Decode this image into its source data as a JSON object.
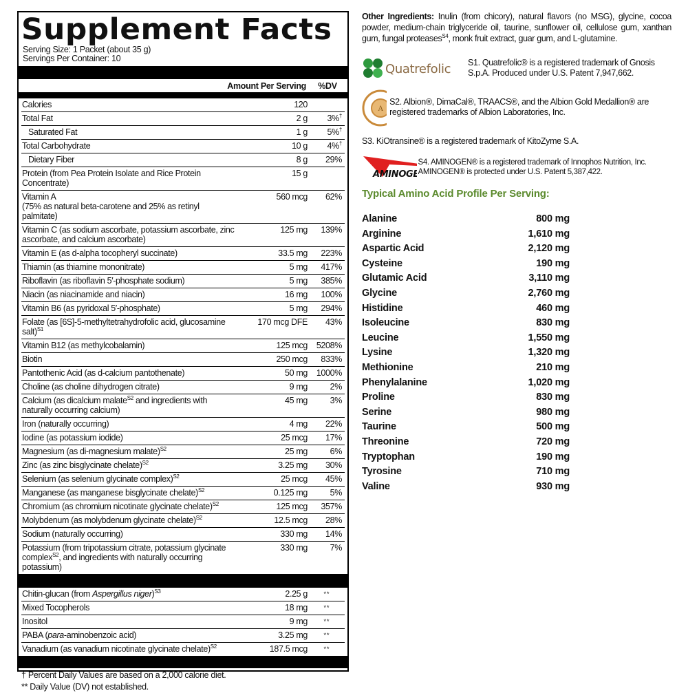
{
  "title": "Supplement Facts",
  "serving_size": "Serving Size: 1 Packet (about 35 g)",
  "servings_per_container": "Servings Per Container: 10",
  "header": {
    "amount": "Amount Per Serving",
    "dv": "%DV"
  },
  "rows": [
    {
      "parts": [
        {
          "t": "Calories"
        }
      ],
      "amount": "120",
      "dv": ""
    },
    {
      "parts": [
        {
          "t": "Total Fat"
        }
      ],
      "amount": "2 g",
      "dv": "3%",
      "dvsup": "†"
    },
    {
      "parts": [
        {
          "t": "Saturated Fat"
        }
      ],
      "indent": true,
      "amount": "1 g",
      "dv": "5%",
      "dvsup": "†"
    },
    {
      "parts": [
        {
          "t": "Total Carbohydrate"
        }
      ],
      "amount": "10 g",
      "dv": "4%",
      "dvsup": "†"
    },
    {
      "parts": [
        {
          "t": "Dietary Fiber"
        }
      ],
      "indent": true,
      "amount": "8 g",
      "dv": "29%"
    },
    {
      "parts": [
        {
          "t": "Protein (from Pea Protein Isolate and Rice Protein Concentrate)"
        }
      ],
      "amount": "15 g",
      "dv": ""
    },
    {
      "parts": [
        {
          "t": "Vitamin A"
        },
        {
          "br": true
        },
        {
          "t": "(75% as natural beta-carotene and 25% as retinyl palmitate)"
        }
      ],
      "amount": "560 mcg",
      "dv": "62%"
    },
    {
      "parts": [
        {
          "t": "Vitamin C (as sodium ascorbate, potassium ascorbate, zinc ascorbate, and calcium ascorbate)"
        }
      ],
      "amount": "125 mg",
      "dv": "139%"
    },
    {
      "parts": [
        {
          "t": "Vitamin E (as d-alpha tocopheryl succinate)"
        }
      ],
      "amount": "33.5 mg",
      "dv": "223%"
    },
    {
      "parts": [
        {
          "t": "Thiamin (as thiamine mononitrate)"
        }
      ],
      "amount": "5 mg",
      "dv": "417%"
    },
    {
      "parts": [
        {
          "t": "Riboflavin (as riboflavin 5′-phosphate sodium)"
        }
      ],
      "amount": "5 mg",
      "dv": "385%"
    },
    {
      "parts": [
        {
          "t": "Niacin (as niacinamide and niacin)"
        }
      ],
      "amount": "16 mg",
      "dv": "100%"
    },
    {
      "parts": [
        {
          "t": "Vitamin B6 (as pyridoxal 5′-phosphate)"
        }
      ],
      "amount": "5 mg",
      "dv": "294%"
    },
    {
      "parts": [
        {
          "t": "Folate (as [6S]-5-methyltetrahydrofolic acid, glucosamine salt)"
        },
        {
          "t": "S1",
          "sup": true
        }
      ],
      "amount": "170 mcg DFE",
      "dv": "43%"
    },
    {
      "parts": [
        {
          "t": "Vitamin B12 (as methylcobalamin)"
        }
      ],
      "amount": "125 mcg",
      "dv": "5208%"
    },
    {
      "parts": [
        {
          "t": "Biotin"
        }
      ],
      "amount": "250 mcg",
      "dv": "833%"
    },
    {
      "parts": [
        {
          "t": "Pantothenic Acid (as d-calcium pantothenate)"
        }
      ],
      "amount": "50 mg",
      "dv": "1000%"
    },
    {
      "parts": [
        {
          "t": "Choline (as choline dihydrogen citrate)"
        }
      ],
      "amount": "9 mg",
      "dv": "2%"
    },
    {
      "parts": [
        {
          "t": "Calcium (as dicalcium malate"
        },
        {
          "t": "S2",
          "sup": true
        },
        {
          "t": " and ingredients with naturally occurring calcium)"
        }
      ],
      "amount": "45 mg",
      "dv": "3%"
    },
    {
      "parts": [
        {
          "t": "Iron (naturally occurring)"
        }
      ],
      "amount": "4 mg",
      "dv": "22%"
    },
    {
      "parts": [
        {
          "t": "Iodine (as potassium iodide)"
        }
      ],
      "amount": "25 mcg",
      "dv": "17%"
    },
    {
      "parts": [
        {
          "t": "Magnesium (as di-magnesium malate)"
        },
        {
          "t": "S2",
          "sup": true
        }
      ],
      "amount": "25 mg",
      "dv": "6%"
    },
    {
      "parts": [
        {
          "t": "Zinc (as zinc bisglycinate chelate)"
        },
        {
          "t": "S2",
          "sup": true
        }
      ],
      "amount": "3.25 mg",
      "dv": "30%"
    },
    {
      "parts": [
        {
          "t": "Selenium (as selenium glycinate complex)"
        },
        {
          "t": "S2",
          "sup": true
        }
      ],
      "amount": "25 mcg",
      "dv": "45%"
    },
    {
      "parts": [
        {
          "t": "Manganese (as manganese bisglycinate chelate)"
        },
        {
          "t": "S2",
          "sup": true
        }
      ],
      "amount": "0.125 mg",
      "dv": "5%"
    },
    {
      "parts": [
        {
          "t": "Chromium (as chromium nicotinate glycinate chelate)"
        },
        {
          "t": "S2",
          "sup": true
        }
      ],
      "amount": "125 mcg",
      "dv": "357%"
    },
    {
      "parts": [
        {
          "t": "Molybdenum (as molybdenum glycinate chelate)"
        },
        {
          "t": "S2",
          "sup": true
        }
      ],
      "amount": "12.5 mcg",
      "dv": "28%"
    },
    {
      "parts": [
        {
          "t": "Sodium (naturally occurring)"
        }
      ],
      "amount": "330 mg",
      "dv": "14%"
    },
    {
      "parts": [
        {
          "t": "Potassium (from tripotassium citrate, potassium glycinate complex"
        },
        {
          "t": "S2",
          "sup": true
        },
        {
          "t": ", and ingredients with naturally occurring potassium)"
        }
      ],
      "amount": "330 mg",
      "dv": "7%",
      "last": true
    }
  ],
  "rows2": [
    {
      "parts": [
        {
          "t": "Chitin-glucan (from "
        },
        {
          "t": "Aspergillus niger",
          "i": true
        },
        {
          "t": ")"
        },
        {
          "t": "S3",
          "sup": true
        }
      ],
      "amount": "2.25 g",
      "dv": "**"
    },
    {
      "parts": [
        {
          "t": "Mixed Tocopherols"
        }
      ],
      "amount": "18 mg",
      "dv": "**"
    },
    {
      "parts": [
        {
          "t": "Inositol"
        }
      ],
      "amount": "9 mg",
      "dv": "**"
    },
    {
      "parts": [
        {
          "t": "PABA ("
        },
        {
          "t": "para",
          "i": true
        },
        {
          "t": "-aminobenzoic acid)"
        }
      ],
      "amount": "3.25 mg",
      "dv": "**"
    },
    {
      "parts": [
        {
          "t": "Vanadium (as vanadium nicotinate glycinate chelate)"
        },
        {
          "t": "S2",
          "sup": true
        }
      ],
      "amount": "187.5 mcg",
      "dv": "**",
      "last": true
    }
  ],
  "footnotes": [
    "† Percent Daily Values are based on a 2,000 calorie diet.",
    "** Daily Value (DV) not established."
  ],
  "other_ingredients": {
    "label": "Other Ingredients:",
    "text_a": " Inulin (from chicory), natural flavors (no MSG), glycine, cocoa powder, medium-chain triglyceride oil, taurine, sunflower oil, cellulose gum, xanthan gum, fungal proteases",
    "sup": "S4",
    "text_b": ", monk fruit extract, guar gum, and L-glutamine."
  },
  "trademarks": {
    "s1": "S1. Quatrefolic® is a registered trademark of Gnosis S.p.A. Produced under U.S. Patent 7,947,662.",
    "s2": "S2. Albion®, DimaCal®, TRAACS®, and the Albion Gold Medallion® are registered trademarks of Albion Laboratories, Inc.",
    "s3": "S3. KiOtransine® is a registered trademark of KitoZyme S.A.",
    "s4": "S4. AMINOGEN® is a registered trademark of Innophos Nutrition, Inc. AMINOGEN® is protected under U.S. Patent 5,387,422."
  },
  "logos": {
    "quatrefolic": "Quatrefolic",
    "albion": "ALBION MINERALS",
    "aminogen": "AMINOGEN"
  },
  "colors": {
    "amino_heading": "#5b8a2d",
    "quatrefolic_green": "#2e9a3e",
    "quatrefolic_brown": "#8a6a44",
    "albion_gold": "#c98a3a",
    "aminogen_red": "#e02020"
  },
  "amino_heading": "Typical Amino Acid Profile Per Serving:",
  "amino_acids": [
    {
      "name": "Alanine",
      "amount": "800 mg"
    },
    {
      "name": "Arginine",
      "amount": "1,610 mg"
    },
    {
      "name": "Aspartic Acid",
      "amount": "2,120 mg"
    },
    {
      "name": "Cysteine",
      "amount": "190 mg"
    },
    {
      "name": "Glutamic Acid",
      "amount": "3,110 mg"
    },
    {
      "name": "Glycine",
      "amount": "2,760 mg"
    },
    {
      "name": "Histidine",
      "amount": "460 mg"
    },
    {
      "name": "Isoleucine",
      "amount": "830 mg"
    },
    {
      "name": "Leucine",
      "amount": "1,550 mg"
    },
    {
      "name": "Lysine",
      "amount": "1,320 mg"
    },
    {
      "name": "Methionine",
      "amount": "210 mg"
    },
    {
      "name": "Phenylalanine",
      "amount": "1,020 mg"
    },
    {
      "name": "Proline",
      "amount": "830 mg"
    },
    {
      "name": "Serine",
      "amount": "980 mg"
    },
    {
      "name": "Taurine",
      "amount": "500 mg"
    },
    {
      "name": "Threonine",
      "amount": "720 mg"
    },
    {
      "name": "Tryptophan",
      "amount": "190 mg"
    },
    {
      "name": "Tyrosine",
      "amount": "710 mg"
    },
    {
      "name": "Valine",
      "amount": "930 mg"
    }
  ]
}
